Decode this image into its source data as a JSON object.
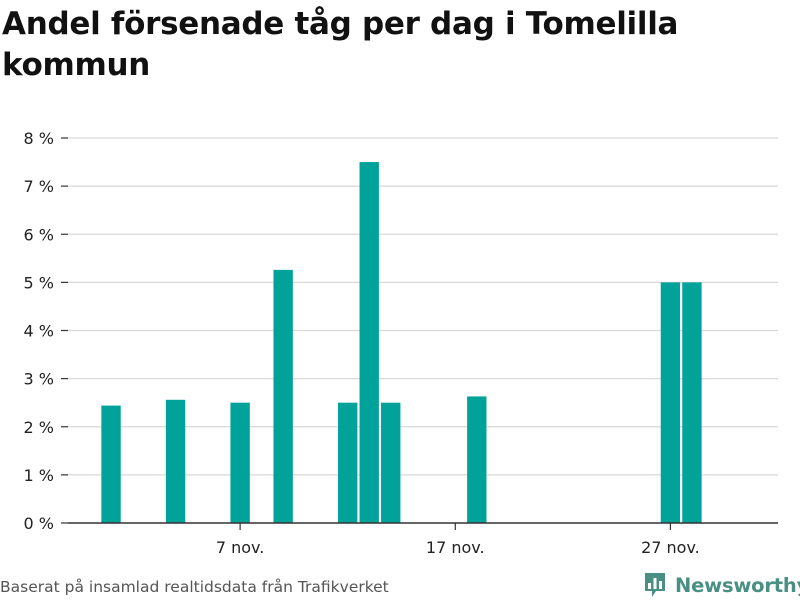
{
  "title": "Andel försenade tåg per dag i Tomelilla kommun",
  "footer": {
    "source": "Baserat på insamlad realtidsdata från Trafikverket",
    "brand": "Newsworthy"
  },
  "colors": {
    "bar": "#00a29a",
    "grid": "#d9d9d9",
    "axis": "#333333",
    "text": "#222222",
    "brand": "#4a8f84"
  },
  "icons": {
    "brand_logo": "bar-chart-speech-bubble-icon"
  },
  "chart_data": {
    "type": "bar",
    "title": "Andel försenade tåg per dag i Tomelilla kommun",
    "xlabel": "",
    "ylabel": "",
    "x_range": [
      "2019-10-30",
      "2019-12-02"
    ],
    "ylim": [
      0,
      8
    ],
    "y_ticks": [
      0,
      1,
      2,
      3,
      4,
      5,
      6,
      7,
      8
    ],
    "y_tick_labels": [
      "0 %",
      "1 %",
      "2 %",
      "3 %",
      "4 %",
      "5 %",
      "6 %",
      "7 %",
      "8 %"
    ],
    "x_ticks": [
      "2019-11-07",
      "2019-11-17",
      "2019-11-27"
    ],
    "x_tick_labels": [
      "7 nov.",
      "17 nov.",
      "27 nov."
    ],
    "grid": true,
    "legend": "none",
    "x": [
      "2019-11-01",
      "2019-11-04",
      "2019-11-07",
      "2019-11-09",
      "2019-11-12",
      "2019-11-13",
      "2019-11-14",
      "2019-11-18",
      "2019-11-27",
      "2019-11-28"
    ],
    "values": [
      2.44,
      2.56,
      2.5,
      5.26,
      2.5,
      7.5,
      2.5,
      2.63,
      5.0,
      5.0
    ]
  }
}
